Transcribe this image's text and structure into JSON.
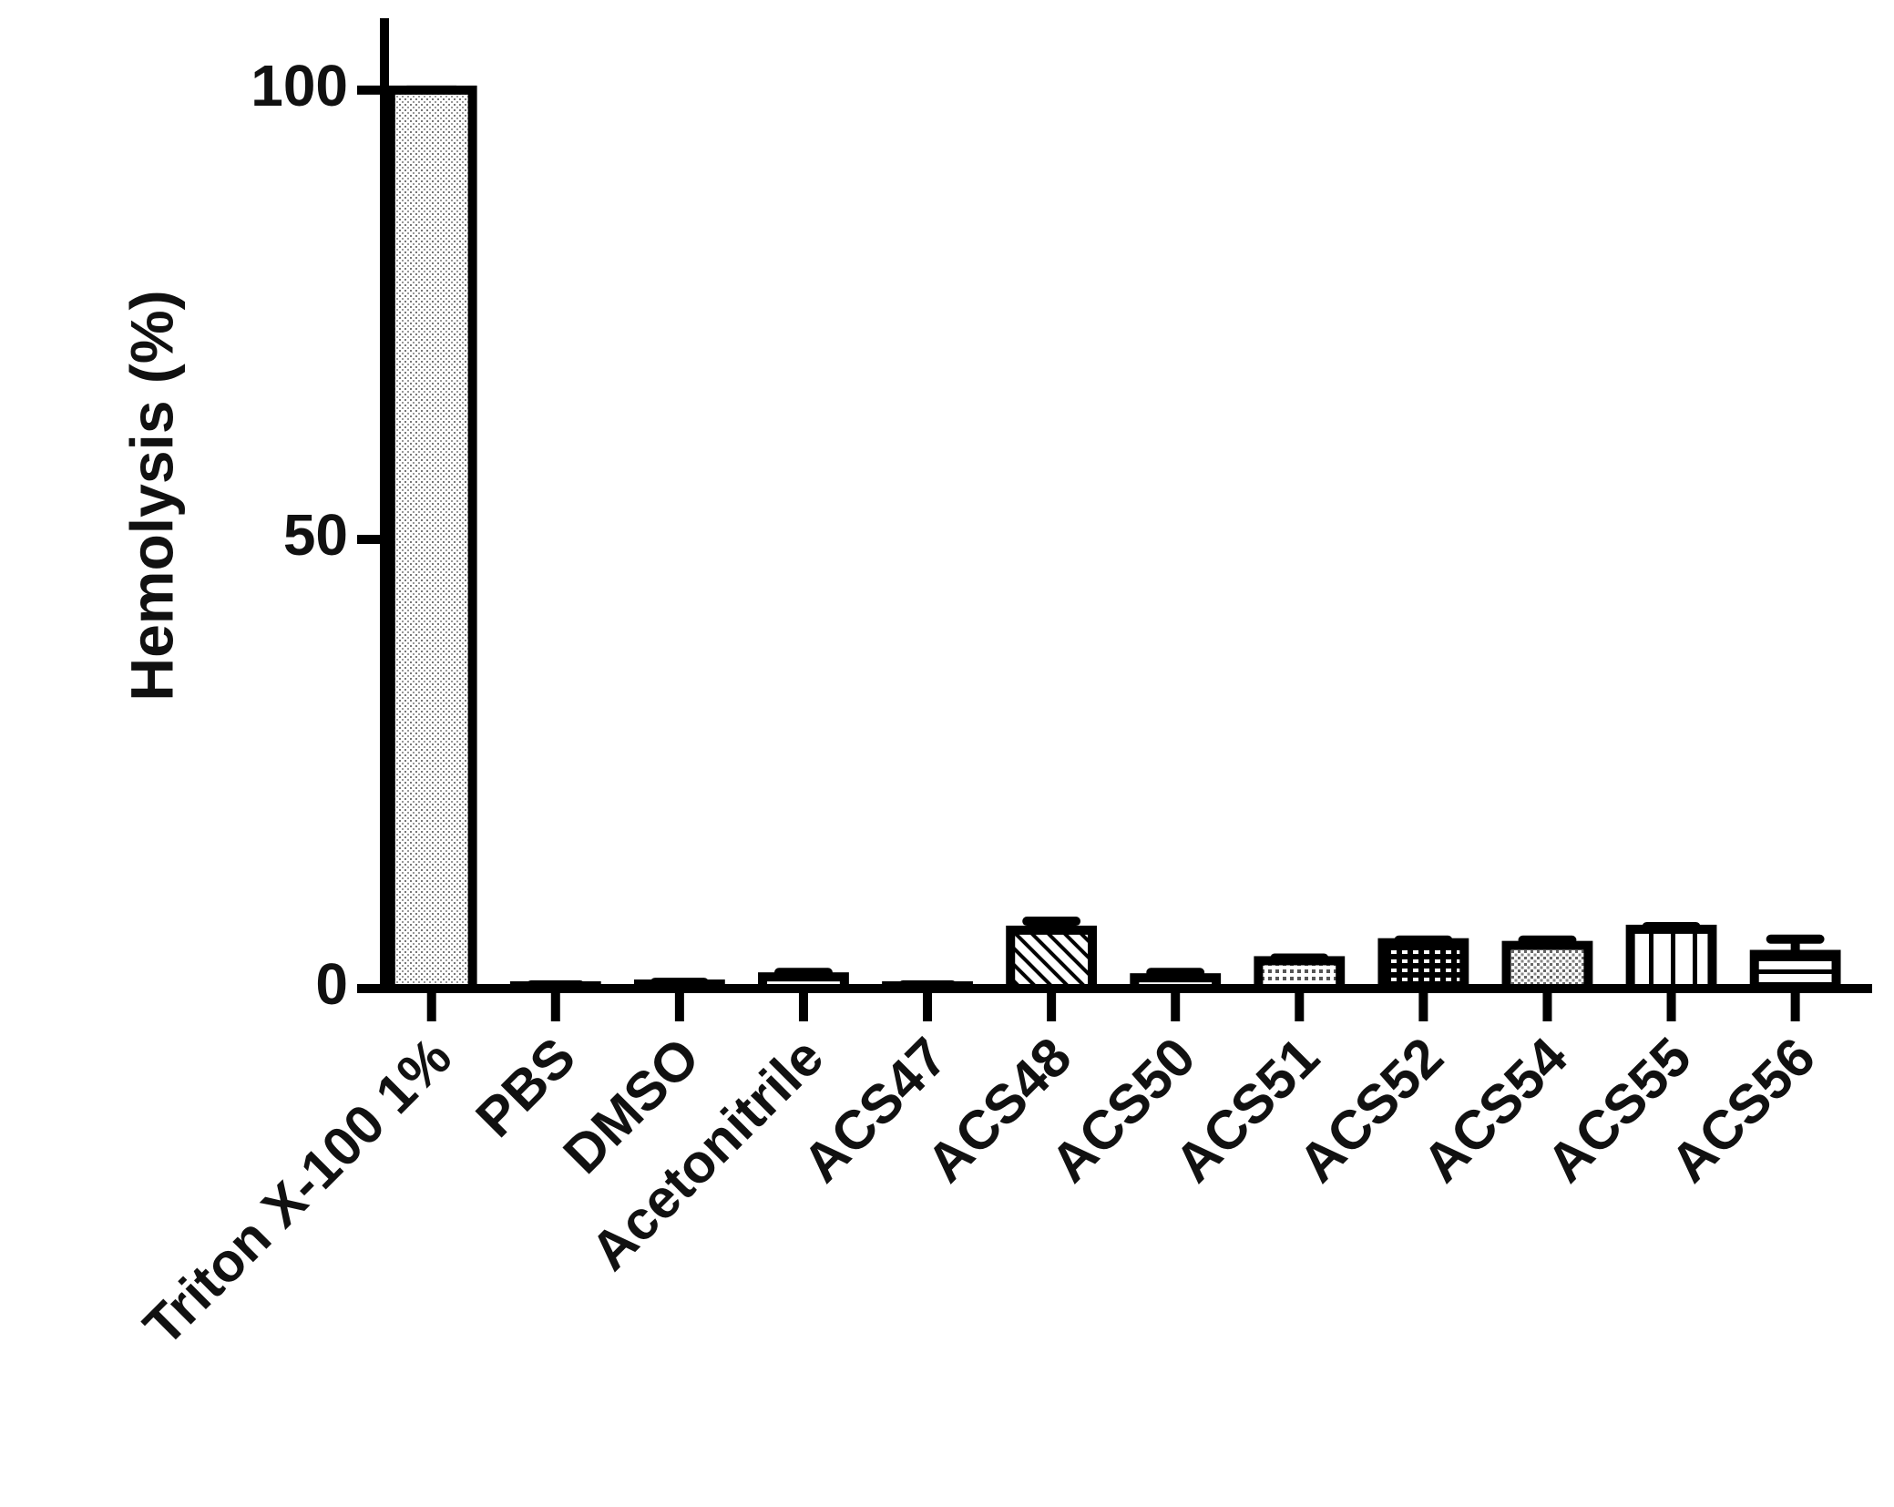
{
  "chart_data": {
    "type": "bar",
    "y_label": "Hemolysis (%)",
    "categories": [
      "Triton X-100 1%",
      "PBS",
      "DMSO",
      "Acetonitrile",
      "ACS47",
      "ACS48",
      "ACS50",
      "ACS51",
      "ACS52",
      "ACS54",
      "ACS55",
      "ACS56"
    ],
    "values": [
      100,
      0.3,
      0.5,
      1.3,
      0.3,
      6.5,
      1.2,
      3.1,
      5.1,
      4.8,
      6.6,
      3.8
    ],
    "errors": [
      0,
      0.1,
      0.2,
      0.5,
      0.1,
      1,
      0.6,
      0.3,
      0.3,
      0.6,
      0.3,
      1.7
    ],
    "color": "#000000",
    "ylim": [
      0,
      108
    ],
    "yticks": [
      0,
      50,
      100
    ],
    "grid": false
  }
}
